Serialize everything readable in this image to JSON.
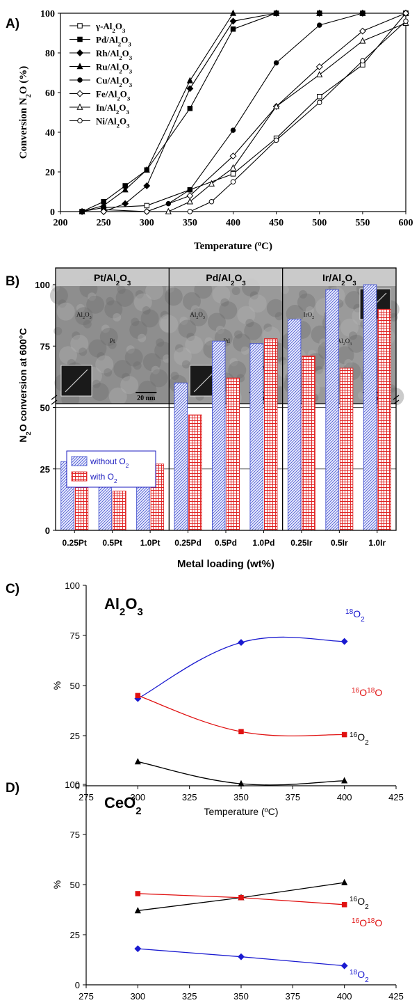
{
  "chart_data": [
    {
      "panel": "A)",
      "type": "line",
      "xlabel": "Temperature (°C)",
      "ylabel": "Conversion N2O (%)",
      "xlim": [
        200,
        600
      ],
      "ylim": [
        0,
        100
      ],
      "xticks": [
        200,
        250,
        300,
        350,
        400,
        450,
        500,
        550,
        600
      ],
      "yticks": [
        0,
        20,
        40,
        60,
        80,
        100
      ],
      "legend_position": "top-left",
      "series": [
        {
          "name": "γ-Al2O3",
          "marker": "square-open",
          "points": [
            [
              225,
              0
            ],
            [
              250,
              2
            ],
            [
              300,
              3
            ],
            [
              350,
              11
            ],
            [
              400,
              19
            ],
            [
              450,
              37
            ],
            [
              500,
              58
            ],
            [
              550,
              74
            ],
            [
              600,
              100
            ]
          ]
        },
        {
          "name": "Pd/Al2O3",
          "marker": "square-filled",
          "points": [
            [
              225,
              0
            ],
            [
              250,
              5
            ],
            [
              275,
              13
            ],
            [
              300,
              21
            ],
            [
              350,
              52
            ],
            [
              400,
              92
            ],
            [
              450,
              100
            ],
            [
              500,
              100
            ],
            [
              550,
              100
            ],
            [
              600,
              100
            ]
          ]
        },
        {
          "name": "Rh/Al2O3",
          "marker": "diamond-filled",
          "points": [
            [
              225,
              0
            ],
            [
              250,
              0
            ],
            [
              275,
              4
            ],
            [
              300,
              13
            ],
            [
              350,
              62
            ],
            [
              400,
              96
            ],
            [
              450,
              100
            ],
            [
              500,
              100
            ],
            [
              550,
              100
            ],
            [
              600,
              100
            ]
          ]
        },
        {
          "name": "Ru/Al2O3",
          "marker": "triangle-filled",
          "points": [
            [
              225,
              0
            ],
            [
              250,
              3
            ],
            [
              275,
              11
            ],
            [
              300,
              21
            ],
            [
              350,
              66
            ],
            [
              400,
              100
            ],
            [
              450,
              100
            ],
            [
              500,
              100
            ],
            [
              550,
              100
            ],
            [
              600,
              100
            ]
          ]
        },
        {
          "name": "Cu/Al2O3",
          "marker": "circle-filled",
          "points": [
            [
              250,
              1
            ],
            [
              300,
              0
            ],
            [
              325,
              4
            ],
            [
              350,
              11
            ],
            [
              400,
              41
            ],
            [
              450,
              75
            ],
            [
              500,
              94
            ],
            [
              550,
              100
            ],
            [
              600,
              100
            ]
          ]
        },
        {
          "name": "Fe/Al2O3",
          "marker": "diamond-open",
          "points": [
            [
              250,
              0
            ],
            [
              300,
              0
            ],
            [
              350,
              8
            ],
            [
              400,
              28
            ],
            [
              450,
              53
            ],
            [
              500,
              73
            ],
            [
              550,
              91
            ],
            [
              600,
              100
            ]
          ]
        },
        {
          "name": "In/Al2O3",
          "marker": "triangle-open",
          "points": [
            [
              325,
              0
            ],
            [
              350,
              5
            ],
            [
              375,
              14
            ],
            [
              400,
              22
            ],
            [
              450,
              53
            ],
            [
              500,
              69
            ],
            [
              550,
              86
            ],
            [
              600,
              95
            ]
          ]
        },
        {
          "name": "Ni/Al2O3",
          "marker": "circle-open",
          "points": [
            [
              350,
              0
            ],
            [
              375,
              5
            ],
            [
              400,
              15
            ],
            [
              450,
              36
            ],
            [
              500,
              55
            ],
            [
              550,
              76
            ],
            [
              600,
              96
            ]
          ]
        }
      ]
    },
    {
      "panel": "B)",
      "type": "bar",
      "xlabel": "Metal loading (wt%)",
      "ylabel": "N2O conversion at 600°C",
      "ylim": [
        0,
        100
      ],
      "yticks": [
        0,
        25,
        50,
        75,
        100
      ],
      "categories": [
        "0.25Pt",
        "0.5Pt",
        "1.0Pt",
        "0.25Pd",
        "0.5Pd",
        "1.0Pd",
        "0.25Ir",
        "0.5Ir",
        "1.0Ir"
      ],
      "groups": [
        "Pt/Al2O3",
        "Pd/Al2O3",
        "Ir/Al2O3"
      ],
      "series": [
        {
          "name": "without O2",
          "color": "#4a58d0",
          "values": [
            28,
            26,
            29,
            60,
            77,
            76,
            86,
            98,
            100
          ]
        },
        {
          "name": "with O2",
          "color": "#e02020",
          "values": [
            24,
            16,
            27,
            47,
            62,
            78,
            71,
            66,
            90
          ]
        }
      ],
      "images": [
        {
          "scale": "20 nm",
          "labels": [
            "Al2O3",
            "Pt"
          ]
        },
        {
          "scale": "20 nm",
          "labels": [
            "Al2O3",
            "Pd",
            "PdO"
          ]
        },
        {
          "scale": "20 nm",
          "labels": [
            "IrO2",
            "Al2O3"
          ]
        }
      ]
    },
    {
      "panel": "C)",
      "type": "line",
      "title": "Al2O3",
      "xlabel": "Temperature (ºC)",
      "ylabel": "%",
      "xlim": [
        275,
        425
      ],
      "ylim": [
        0,
        100
      ],
      "xticks": [
        275,
        300,
        325,
        350,
        375,
        400,
        425
      ],
      "yticks": [
        0,
        25,
        50,
        75,
        100
      ],
      "series": [
        {
          "name": "18O2",
          "color": "#1a1ad0",
          "marker": "diamond",
          "x": [
            300,
            350,
            400
          ],
          "y": [
            43.5,
            71.5,
            72
          ]
        },
        {
          "name": "16O18O",
          "color": "#e01010",
          "marker": "square",
          "x": [
            300,
            350,
            400
          ],
          "y": [
            45,
            27,
            25.5
          ]
        },
        {
          "name": "16O2",
          "color": "#000000",
          "marker": "triangle",
          "x": [
            300,
            350,
            400
          ],
          "y": [
            12,
            1,
            2.5
          ]
        }
      ]
    },
    {
      "panel": "D)",
      "type": "line",
      "title": "CeO2",
      "xlabel": "Temperature (ºC)",
      "ylabel": "%",
      "xlim": [
        275,
        425
      ],
      "ylim": [
        0,
        100
      ],
      "xticks": [
        275,
        300,
        325,
        350,
        375,
        400,
        425
      ],
      "yticks": [
        0,
        25,
        50,
        75,
        100
      ],
      "series": [
        {
          "name": "16O2",
          "color": "#000000",
          "marker": "triangle",
          "x": [
            300,
            350,
            400
          ],
          "y": [
            37,
            43.5,
            51
          ]
        },
        {
          "name": "16O18O",
          "color": "#e01010",
          "marker": "square",
          "x": [
            300,
            350,
            400
          ],
          "y": [
            45.5,
            43.5,
            40
          ]
        },
        {
          "name": "18O2",
          "color": "#1a1ad0",
          "marker": "diamond",
          "x": [
            300,
            350,
            400
          ],
          "y": [
            18,
            14,
            9.5
          ]
        }
      ]
    }
  ]
}
